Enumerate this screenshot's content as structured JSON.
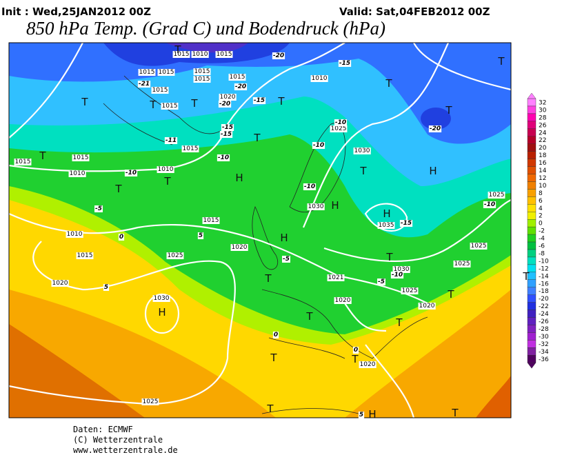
{
  "header": {
    "init": "Init : Wed,25JAN2012 00Z",
    "valid": "Valid: Sat,04FEB2012 00Z",
    "title": "850 hPa Temp. (Grad C) und Bodendruck (hPa)"
  },
  "colorbar": {
    "levels": [
      32,
      30,
      28,
      26,
      24,
      22,
      20,
      18,
      16,
      14,
      12,
      10,
      8,
      6,
      4,
      2,
      0,
      -2,
      -4,
      -6,
      -8,
      -10,
      -12,
      -14,
      -16,
      -18,
      -20,
      -22,
      -24,
      -26,
      -28,
      -30,
      -32,
      -34,
      -36
    ],
    "colors": [
      "#ff80ff",
      "#ff40e0",
      "#ff00b0",
      "#e0007a",
      "#c80050",
      "#b40028",
      "#a01010",
      "#b82000",
      "#d03800",
      "#e05000",
      "#f06800",
      "#f08000",
      "#f8a000",
      "#ffc000",
      "#ffe000",
      "#f0f000",
      "#a0f000",
      "#60e000",
      "#20d020",
      "#00c040",
      "#00d080",
      "#00e0c0",
      "#00e0f0",
      "#20c0ff",
      "#30a0ff",
      "#4080ff",
      "#3050ff",
      "#2030e0",
      "#4020c0",
      "#6020c0",
      "#8020c0",
      "#a020d0",
      "#c030e0",
      "#8020a0",
      "#500060"
    ]
  },
  "map": {
    "isobar_labels": [
      "1015",
      "1010",
      "1015",
      "1015",
      "1015",
      "1015",
      "1015",
      "1015",
      "1015",
      "1020",
      "1015",
      "1010",
      "1025",
      "1030",
      "1015",
      "1015",
      "1015",
      "1010",
      "1010",
      "1015",
      "1020",
      "1025",
      "1010",
      "1015",
      "1020",
      "1030",
      "1030",
      "1035",
      "1025",
      "1025",
      "1025",
      "1030",
      "1021",
      "1025",
      "1020",
      "1020",
      "1020",
      "1025"
    ],
    "isotherm_labels": [
      "-20",
      "-15",
      "-21",
      "-20",
      "-20",
      "-15",
      "-15",
      "-15",
      "-11",
      "-10",
      "-10",
      "-10",
      "-10",
      "-10",
      "-5",
      "0",
      "5",
      "5",
      "-15",
      "-10",
      "-5",
      "-5",
      "-10",
      "-20",
      "0",
      "0",
      "5"
    ],
    "pressure_centers": [
      "T",
      "T",
      "T",
      "T",
      "T",
      "T",
      "T",
      "T",
      "T",
      "T",
      "T",
      "T",
      "T",
      "T",
      "T",
      "T",
      "T",
      "T",
      "T",
      "T",
      "T",
      "T",
      "T",
      "H",
      "H",
      "H",
      "H",
      "H",
      "H",
      "H"
    ]
  },
  "footer": {
    "source": "Daten: ECMWF",
    "copyright": "(C) Wetterzentrale",
    "url": "www.wetterzentrale.de"
  }
}
